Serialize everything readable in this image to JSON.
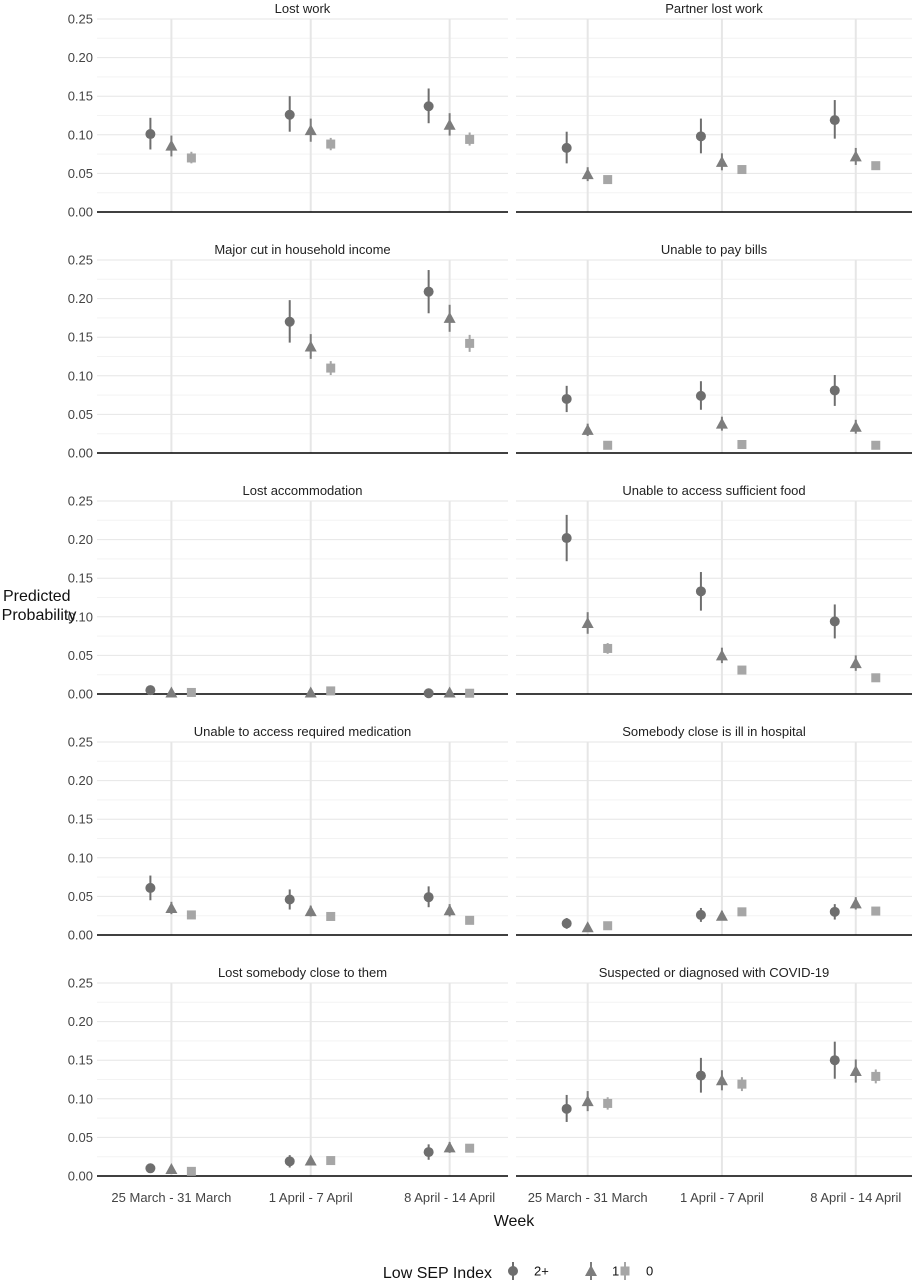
{
  "chart_data": {
    "type": "scatter",
    "xlabel": "Week",
    "ylabel": [
      "Predicted",
      "Probability"
    ],
    "categories": [
      "25 March - 31 March",
      "1 April - 7 April",
      "8 April - 14 April"
    ],
    "ylim": [
      0,
      0.25
    ],
    "yticks": [
      "0.00",
      "0.05",
      "0.10",
      "0.15",
      "0.20",
      "0.25"
    ],
    "legend": {
      "title": "Low SEP Index",
      "position": "bottom",
      "entries": [
        {
          "label": "2+",
          "shape": "circle"
        },
        {
          "label": "1",
          "shape": "triangle"
        },
        {
          "label": "0",
          "shape": "square"
        }
      ]
    },
    "colors": {
      "2+": "#6e6e6e",
      "1": "#7d7d7d",
      "0": "#a6a6a6"
    },
    "panels": [
      {
        "title": "Lost work",
        "series": [
          {
            "name": "2+",
            "values": [
              0.101,
              0.126,
              0.137
            ],
            "lower": [
              0.081,
              0.104,
              0.115
            ],
            "upper": [
              0.122,
              0.15,
              0.16
            ]
          },
          {
            "name": "1",
            "values": [
              0.086,
              0.106,
              0.113
            ],
            "lower": [
              0.072,
              0.091,
              0.099
            ],
            "upper": [
              0.099,
              0.121,
              0.128
            ]
          },
          {
            "name": "0",
            "values": [
              0.07,
              0.088,
              0.094
            ],
            "lower": [
              0.063,
              0.08,
              0.086
            ],
            "upper": [
              0.078,
              0.096,
              0.103
            ]
          }
        ]
      },
      {
        "title": "Partner lost work",
        "series": [
          {
            "name": "2+",
            "values": [
              0.083,
              0.098,
              0.119
            ],
            "lower": [
              0.063,
              0.076,
              0.095
            ],
            "upper": [
              0.104,
              0.121,
              0.145
            ]
          },
          {
            "name": "1",
            "values": [
              0.049,
              0.065,
              0.072
            ],
            "lower": [
              0.04,
              0.054,
              0.061
            ],
            "upper": [
              0.058,
              0.076,
              0.083
            ]
          },
          {
            "name": "0",
            "values": [
              0.042,
              0.055,
              0.06
            ],
            "lower": [
              0.038,
              0.05,
              0.055
            ],
            "upper": [
              0.046,
              0.06,
              0.065
            ]
          }
        ]
      },
      {
        "title": "Major cut in household income",
        "series": [
          {
            "name": "2+",
            "values": [
              null,
              0.17,
              0.209
            ],
            "lower": [
              null,
              0.143,
              0.181
            ],
            "upper": [
              null,
              0.198,
              0.237
            ]
          },
          {
            "name": "1",
            "values": [
              null,
              0.138,
              0.175
            ],
            "lower": [
              null,
              0.122,
              0.157
            ],
            "upper": [
              null,
              0.154,
              0.192
            ]
          },
          {
            "name": "0",
            "values": [
              null,
              0.11,
              0.142
            ],
            "lower": [
              null,
              0.101,
              0.131
            ],
            "upper": [
              null,
              0.119,
              0.153
            ]
          }
        ]
      },
      {
        "title": "Unable to pay bills",
        "series": [
          {
            "name": "2+",
            "values": [
              0.07,
              0.074,
              0.081
            ],
            "lower": [
              0.053,
              0.056,
              0.061
            ],
            "upper": [
              0.087,
              0.093,
              0.101
            ]
          },
          {
            "name": "1",
            "values": [
              0.03,
              0.038,
              0.034
            ],
            "lower": [
              0.022,
              0.029,
              0.025
            ],
            "upper": [
              0.038,
              0.047,
              0.043
            ]
          },
          {
            "name": "0",
            "values": [
              0.01,
              0.011,
              0.01
            ],
            "lower": [
              0.007,
              0.008,
              0.007
            ],
            "upper": [
              0.013,
              0.014,
              0.013
            ]
          }
        ]
      },
      {
        "title": "Lost accommodation",
        "series": [
          {
            "name": "2+",
            "values": [
              0.005,
              null,
              0.001
            ],
            "lower": [
              0.002,
              null,
              0.0
            ],
            "upper": [
              0.009,
              null,
              0.003
            ]
          },
          {
            "name": "1",
            "values": [
              0.002,
              0.002,
              0.002
            ],
            "lower": [
              0.001,
              0.001,
              0.001
            ],
            "upper": [
              0.004,
              0.003,
              0.003
            ]
          },
          {
            "name": "0",
            "values": [
              0.002,
              0.004,
              0.001
            ],
            "lower": [
              0.001,
              0.002,
              0.0
            ],
            "upper": [
              0.003,
              0.008,
              0.002
            ]
          }
        ]
      },
      {
        "title": "Unable to access sufficient food",
        "series": [
          {
            "name": "2+",
            "values": [
              0.202,
              0.133,
              0.094
            ],
            "lower": [
              0.172,
              0.108,
              0.072
            ],
            "upper": [
              0.232,
              0.158,
              0.116
            ]
          },
          {
            "name": "1",
            "values": [
              0.092,
              0.05,
              0.04
            ],
            "lower": [
              0.078,
              0.04,
              0.03
            ],
            "upper": [
              0.106,
              0.06,
              0.05
            ]
          },
          {
            "name": "0",
            "values": [
              0.059,
              0.031,
              0.021
            ],
            "lower": [
              0.052,
              0.026,
              0.017
            ],
            "upper": [
              0.066,
              0.036,
              0.025
            ]
          }
        ]
      },
      {
        "title": "Unable to access required medication",
        "series": [
          {
            "name": "2+",
            "values": [
              0.061,
              0.046,
              0.049
            ],
            "lower": [
              0.045,
              0.033,
              0.036
            ],
            "upper": [
              0.077,
              0.059,
              0.063
            ]
          },
          {
            "name": "1",
            "values": [
              0.035,
              0.031,
              0.032
            ],
            "lower": [
              0.027,
              0.024,
              0.024
            ],
            "upper": [
              0.043,
              0.038,
              0.04
            ]
          },
          {
            "name": "0",
            "values": [
              0.026,
              0.024,
              0.019
            ],
            "lower": [
              0.022,
              0.02,
              0.015
            ],
            "upper": [
              0.03,
              0.028,
              0.023
            ]
          }
        ]
      },
      {
        "title": "Somebody close is ill in hospital",
        "series": [
          {
            "name": "2+",
            "values": [
              0.015,
              0.026,
              0.03
            ],
            "lower": [
              0.008,
              0.017,
              0.02
            ],
            "upper": [
              0.022,
              0.035,
              0.04
            ]
          },
          {
            "name": "1",
            "values": [
              0.01,
              0.025,
              0.041
            ],
            "lower": [
              0.006,
              0.019,
              0.033
            ],
            "upper": [
              0.014,
              0.031,
              0.049
            ]
          },
          {
            "name": "0",
            "values": [
              0.012,
              0.03,
              0.031
            ],
            "lower": [
              0.009,
              0.025,
              0.026
            ],
            "upper": [
              0.015,
              0.035,
              0.036
            ]
          }
        ]
      },
      {
        "title": "Lost somebody close to them",
        "series": [
          {
            "name": "2+",
            "values": [
              0.01,
              0.019,
              0.031
            ],
            "lower": [
              0.004,
              0.011,
              0.021
            ],
            "upper": [
              0.016,
              0.027,
              0.041
            ]
          },
          {
            "name": "1",
            "values": [
              0.009,
              0.02,
              0.037
            ],
            "lower": [
              0.005,
              0.015,
              0.03
            ],
            "upper": [
              0.013,
              0.025,
              0.044
            ]
          },
          {
            "name": "0",
            "values": [
              0.006,
              0.02,
              0.036
            ],
            "lower": [
              0.004,
              0.017,
              0.032
            ],
            "upper": [
              0.008,
              0.023,
              0.04
            ]
          }
        ]
      },
      {
        "title": "Suspected or diagnosed with COVID-19",
        "series": [
          {
            "name": "2+",
            "values": [
              0.087,
              0.13,
              0.15
            ],
            "lower": [
              0.07,
              0.108,
              0.126
            ],
            "upper": [
              0.105,
              0.153,
              0.174
            ]
          },
          {
            "name": "1",
            "values": [
              0.097,
              0.124,
              0.136
            ],
            "lower": [
              0.084,
              0.111,
              0.121
            ],
            "upper": [
              0.11,
              0.137,
              0.151
            ]
          },
          {
            "name": "0",
            "values": [
              0.094,
              0.119,
              0.129
            ],
            "lower": [
              0.086,
              0.11,
              0.12
            ],
            "upper": [
              0.102,
              0.128,
              0.138
            ]
          }
        ]
      }
    ]
  }
}
